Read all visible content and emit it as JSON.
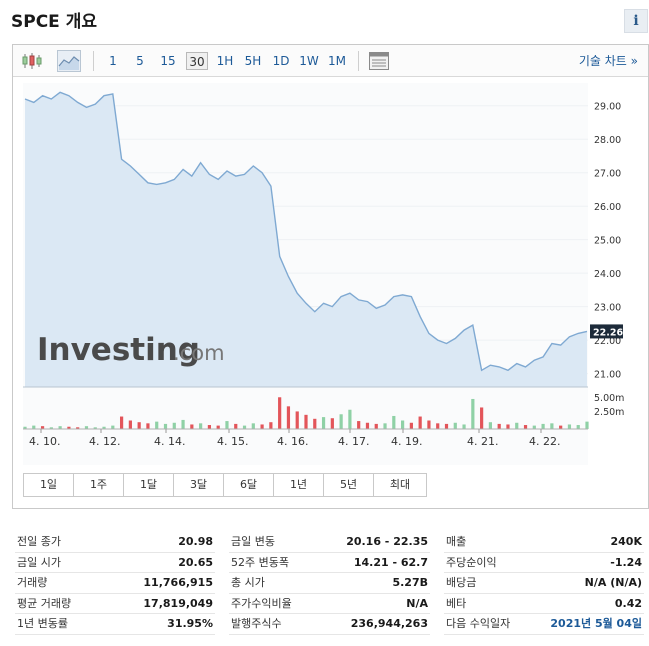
{
  "header": {
    "title": "SPCE 개요",
    "info_icon": "i"
  },
  "toolbar": {
    "intervals": [
      "1",
      "5",
      "15",
      "30",
      "1H",
      "5H",
      "1D",
      "1W",
      "1M"
    ],
    "active_interval": "30",
    "tech_chart_label": "기술 차트 »"
  },
  "chart_data": {
    "type": "area",
    "watermark": "Investing.com",
    "current_price": "22.26",
    "y_ticks": [
      "29.00",
      "28.00",
      "27.00",
      "26.00",
      "25.00",
      "24.00",
      "23.00",
      "22.00",
      "21.00"
    ],
    "y_range": [
      20.6,
      29.5
    ],
    "volume_ticks": [
      "5.00m",
      "2.50m"
    ],
    "x_ticks": [
      "4. 10.",
      "4. 12.",
      "4. 14.",
      "4. 15.",
      "4. 16.",
      "4. 17.",
      "4. 19.",
      "4. 21.",
      "4. 22."
    ],
    "price": [
      29.2,
      29.1,
      29.3,
      29.2,
      29.4,
      29.3,
      29.1,
      28.95,
      29.05,
      29.3,
      29.35,
      27.4,
      27.2,
      26.95,
      26.7,
      26.65,
      26.7,
      26.8,
      27.1,
      26.9,
      27.3,
      26.95,
      26.8,
      27.05,
      26.9,
      26.95,
      27.2,
      27.0,
      26.6,
      24.5,
      23.9,
      23.4,
      23.1,
      22.85,
      23.1,
      23.0,
      23.3,
      23.4,
      23.2,
      23.15,
      22.95,
      23.05,
      23.3,
      23.35,
      23.3,
      22.7,
      22.2,
      22.0,
      21.9,
      22.05,
      22.3,
      22.45,
      21.1,
      21.25,
      21.2,
      21.1,
      21.3,
      21.2,
      21.4,
      21.5,
      21.9,
      21.85,
      22.1,
      22.2,
      22.26
    ],
    "volume": [
      0.4,
      0.6,
      0.5,
      0.3,
      0.5,
      0.4,
      0.3,
      0.5,
      0.3,
      0.4,
      0.6,
      2.2,
      1.5,
      1.2,
      1.0,
      1.3,
      0.9,
      1.1,
      1.6,
      0.8,
      1.0,
      0.7,
      0.6,
      1.4,
      0.9,
      0.6,
      1.0,
      0.8,
      1.2,
      5.6,
      4.0,
      3.1,
      2.5,
      1.8,
      2.1,
      1.9,
      2.6,
      3.4,
      1.4,
      1.1,
      0.9,
      1.0,
      2.3,
      1.5,
      1.1,
      2.2,
      1.5,
      1.0,
      0.9,
      1.1,
      0.8,
      5.3,
      3.8,
      1.2,
      0.9,
      0.8,
      1.1,
      0.7,
      0.6,
      0.9,
      1.0,
      0.6,
      0.8,
      0.7,
      1.3
    ],
    "volume_max": 6.0,
    "volume_up": [
      true,
      true,
      false,
      true,
      true,
      false,
      false,
      true,
      true,
      true,
      true,
      false,
      false,
      false,
      false,
      true,
      true,
      true,
      true,
      false,
      true,
      false,
      false,
      true,
      false,
      true,
      true,
      false,
      false,
      false,
      false,
      false,
      false,
      false,
      true,
      false,
      true,
      true,
      false,
      false,
      false,
      true,
      true,
      true,
      false,
      false,
      false,
      false,
      false,
      true,
      true,
      true,
      false,
      true,
      false,
      false,
      true,
      false,
      true,
      true,
      true,
      false,
      true,
      true,
      true
    ]
  },
  "ranges": [
    "1일",
    "1주",
    "1달",
    "3달",
    "6달",
    "1년",
    "5년",
    "최대"
  ],
  "stats": {
    "col1": [
      {
        "label": "전일 종가",
        "value": "20.98"
      },
      {
        "label": "금일 시가",
        "value": "20.65"
      },
      {
        "label": "거래량",
        "value": "11,766,915"
      },
      {
        "label": "평균 거래량",
        "value": "17,819,049"
      },
      {
        "label": "1년 변동률",
        "value": "31.95%"
      }
    ],
    "col2": [
      {
        "label": "금일 변동",
        "value": "20.16 - 22.35"
      },
      {
        "label": "52주 변동폭",
        "value": "14.21 - 62.7"
      },
      {
        "label": "총 시가",
        "value": "5.27B"
      },
      {
        "label": "주가수익비율",
        "value": "N/A"
      },
      {
        "label": "발행주식수",
        "value": "236,944,263"
      }
    ],
    "col3": [
      {
        "label": "매출",
        "value": "240K"
      },
      {
        "label": "주당순이익",
        "value": "-1.24"
      },
      {
        "label": "배당금",
        "value": "N/A (N/A)"
      },
      {
        "label": "베타",
        "value": "0.42"
      },
      {
        "label": "다음 수익일자",
        "value": "2021년 5월 04일"
      }
    ]
  },
  "colors": {
    "line": "#7fa9d2",
    "area": "#dbe8f4",
    "vol_up": "#8fd1a6",
    "vol_down": "#e3555a",
    "price_tag": "#1d2b3a"
  }
}
